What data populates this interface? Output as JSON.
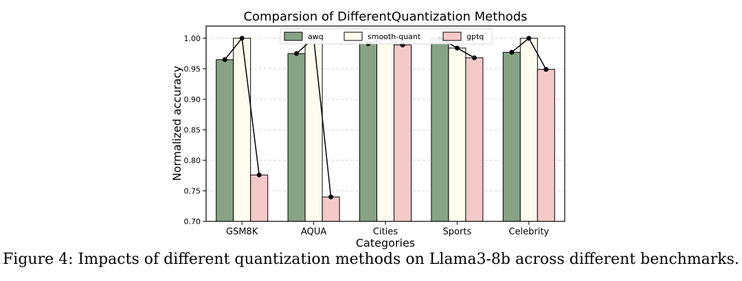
{
  "chart_data": {
    "type": "bar",
    "title": "Comparsion of DifferentQuantization Methods",
    "xlabel": "Categories",
    "ylabel": "Normalized accuracy",
    "categories": [
      "GSM8K",
      "AQUA",
      "Cities",
      "Sports",
      "Celebrity"
    ],
    "ylim": [
      0.7,
      1.02
    ],
    "yticks": [
      "0.70",
      "0.75",
      "0.80",
      "0.85",
      "0.90",
      "0.95",
      "1.00"
    ],
    "grid": "horizontal-dashed",
    "legend_position": "top-center",
    "series": [
      {
        "name": "awq",
        "color": "#86a386",
        "values": [
          0.965,
          0.975,
          0.991,
          1.0,
          0.977
        ]
      },
      {
        "name": "smooth-quant",
        "color": "#fdfcee",
        "values": [
          1.0,
          1.0,
          1.0,
          0.984,
          1.0
        ]
      },
      {
        "name": "gptq",
        "color": "#f6c9c9",
        "values": [
          0.776,
          0.74,
          0.989,
          0.968,
          0.949
        ]
      }
    ],
    "connector_line": "black polyline with markers through bar tops per category"
  },
  "caption": "Figure 4: Impacts of different quantization methods on Llama3-8b across different benchmarks."
}
